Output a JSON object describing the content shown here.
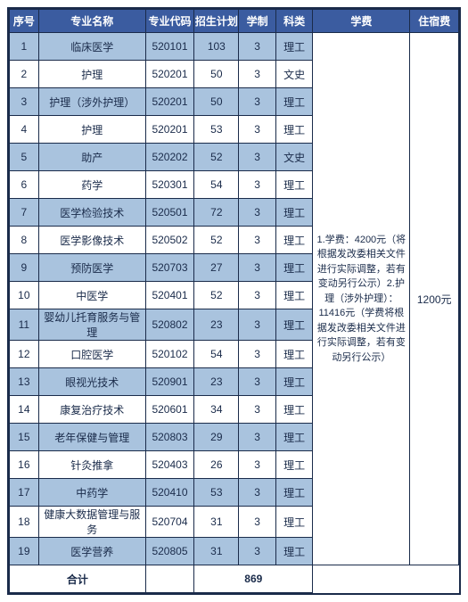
{
  "colors": {
    "header_bg": "#3b5ca0",
    "header_fg": "#ffffff",
    "border": "#1a2b4a",
    "row_odd": "#a9c3de",
    "row_even": "#ffffff"
  },
  "columns": [
    "序号",
    "专业名称",
    "专业代码",
    "招生计划",
    "学制",
    "科类",
    "学费",
    "住宿费"
  ],
  "rows": [
    {
      "idx": "1",
      "name": "临床医学",
      "code": "520101",
      "plan": "103",
      "dur": "3",
      "cat": "理工"
    },
    {
      "idx": "2",
      "name": "护理",
      "code": "520201",
      "plan": "50",
      "dur": "3",
      "cat": "文史"
    },
    {
      "idx": "3",
      "name": "护理（涉外护理）",
      "code": "520201",
      "plan": "50",
      "dur": "3",
      "cat": "理工"
    },
    {
      "idx": "4",
      "name": "护理",
      "code": "520201",
      "plan": "53",
      "dur": "3",
      "cat": "理工"
    },
    {
      "idx": "5",
      "name": "助产",
      "code": "520202",
      "plan": "52",
      "dur": "3",
      "cat": "文史"
    },
    {
      "idx": "6",
      "name": "药学",
      "code": "520301",
      "plan": "54",
      "dur": "3",
      "cat": "理工"
    },
    {
      "idx": "7",
      "name": "医学检验技术",
      "code": "520501",
      "plan": "72",
      "dur": "3",
      "cat": "理工"
    },
    {
      "idx": "8",
      "name": "医学影像技术",
      "code": "520502",
      "plan": "52",
      "dur": "3",
      "cat": "理工"
    },
    {
      "idx": "9",
      "name": "预防医学",
      "code": "520703",
      "plan": "27",
      "dur": "3",
      "cat": "理工"
    },
    {
      "idx": "10",
      "name": "中医学",
      "code": "520401",
      "plan": "52",
      "dur": "3",
      "cat": "理工"
    },
    {
      "idx": "11",
      "name": "婴幼儿托育服务与管理",
      "code": "520802",
      "plan": "23",
      "dur": "3",
      "cat": "理工"
    },
    {
      "idx": "12",
      "name": "口腔医学",
      "code": "520102",
      "plan": "54",
      "dur": "3",
      "cat": "理工"
    },
    {
      "idx": "13",
      "name": "眼视光技术",
      "code": "520901",
      "plan": "23",
      "dur": "3",
      "cat": "理工"
    },
    {
      "idx": "14",
      "name": "康复治疗技术",
      "code": "520601",
      "plan": "34",
      "dur": "3",
      "cat": "理工"
    },
    {
      "idx": "15",
      "name": "老年保健与管理",
      "code": "520803",
      "plan": "29",
      "dur": "3",
      "cat": "理工"
    },
    {
      "idx": "16",
      "name": "针灸推拿",
      "code": "520403",
      "plan": "26",
      "dur": "3",
      "cat": "理工"
    },
    {
      "idx": "17",
      "name": "中药学",
      "code": "520410",
      "plan": "53",
      "dur": "3",
      "cat": "理工"
    },
    {
      "idx": "18",
      "name": "健康大数据管理与服务",
      "code": "520704",
      "plan": "31",
      "dur": "3",
      "cat": "理工"
    },
    {
      "idx": "19",
      "name": "医学营养",
      "code": "520805",
      "plan": "31",
      "dur": "3",
      "cat": "理工"
    }
  ],
  "tuition_note": "1.学费：4200元（将根据发改委相关文件进行实际调整，若有变动另行公示）2.护理（涉外护理）：11416元（学费将根据发改委相关文件进行实际调整，若有变动另行公示）",
  "dorm_fee": "1200元",
  "footer": {
    "label": "合计",
    "total": "869"
  }
}
